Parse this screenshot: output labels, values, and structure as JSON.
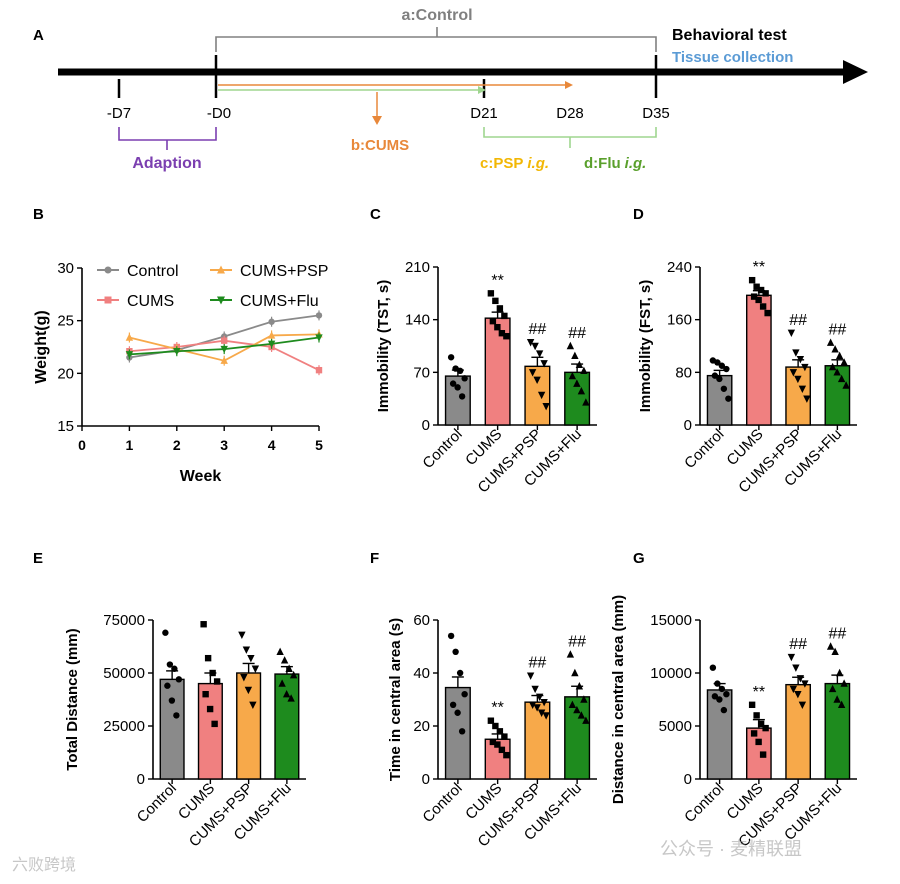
{
  "colors": {
    "control": "#8a8a8a",
    "cums": "#f08080",
    "psp": "#f7a94a",
    "flu": "#1e8b1e",
    "purple": "#7b3fb0",
    "orange": "#e8883a",
    "blue": "#5b9bd5",
    "yellow": "#f2b705",
    "green_text": "#5aa02c",
    "light_green": "#9fd68f",
    "gray_text": "#808080"
  },
  "panel_a": {
    "label": "A",
    "control_label": "a:Control",
    "behavioral_test": "Behavioral test",
    "tissue_collection": "Tissue collection",
    "ticks": [
      "-D7",
      "-D0",
      "D21",
      "D28",
      "D35"
    ],
    "adaption": "Adaption",
    "cums": "b:CUMS",
    "psp_prefix": "c:PSP",
    "psp_ig": "i.g.",
    "flu_prefix": "d:Flu",
    "flu_ig": "i.g."
  },
  "chart_data": [
    {
      "panel": "B",
      "type": "line",
      "xlabel": "Week",
      "ylabel": "Weight(g)",
      "x": [
        1,
        2,
        3,
        4,
        5
      ],
      "xlim": [
        0,
        5
      ],
      "ylim": [
        15,
        30
      ],
      "xticks": [
        "0",
        "1",
        "2",
        "3",
        "4",
        "5"
      ],
      "yticks": [
        "15",
        "20",
        "25",
        "30"
      ],
      "legend_position": "top",
      "series": [
        {
          "name": "Control",
          "values": [
            21.5,
            22.2,
            23.5,
            24.9,
            25.5
          ],
          "marker": "circle",
          "color": "#8a8a8a"
        },
        {
          "name": "CUMS",
          "values": [
            22.1,
            22.5,
            23.1,
            22.5,
            20.3
          ],
          "marker": "square",
          "color": "#f08080"
        },
        {
          "name": "CUMS+PSP",
          "values": [
            23.4,
            22.3,
            21.2,
            23.6,
            23.7
          ],
          "marker": "triangle-up",
          "color": "#f7a94a"
        },
        {
          "name": "CUMS+Flu",
          "values": [
            21.8,
            22.1,
            22.3,
            22.8,
            23.4
          ],
          "marker": "triangle-down",
          "color": "#1e8b1e"
        }
      ]
    },
    {
      "panel": "C",
      "type": "bar",
      "ylabel": "Immobility (TST, s)",
      "categories": [
        "Control",
        "CUMS",
        "CUMS+PSP",
        "CUMS+Flu"
      ],
      "values": [
        65,
        142,
        78,
        70
      ],
      "errors": [
        8,
        8,
        12,
        11
      ],
      "ylim": [
        0,
        210
      ],
      "yticks": [
        "0",
        "70",
        "140",
        "210"
      ],
      "annotations": [
        "",
        "**",
        "##",
        "##"
      ],
      "points": [
        [
          90,
          75,
          72,
          62,
          55,
          50,
          38
        ],
        [
          175,
          165,
          155,
          145,
          138,
          130,
          122,
          118
        ],
        [
          110,
          105,
          95,
          82,
          70,
          60,
          40,
          25
        ],
        [
          105,
          92,
          80,
          72,
          65,
          55,
          45,
          30
        ]
      ]
    },
    {
      "panel": "D",
      "type": "bar",
      "ylabel": "Immobility (FST, s)",
      "categories": [
        "Control",
        "CUMS",
        "CUMS+PSP",
        "CUMS+Flu"
      ],
      "values": [
        75,
        197,
        88,
        90
      ],
      "errors": [
        8,
        7,
        11,
        9
      ],
      "ylim": [
        0,
        240
      ],
      "yticks": [
        "0",
        "80",
        "160",
        "240"
      ],
      "annotations": [
        "",
        "**",
        "##",
        "##"
      ],
      "points": [
        [
          98,
          95,
          90,
          85,
          75,
          70,
          55,
          40
        ],
        [
          220,
          210,
          205,
          200,
          195,
          190,
          180,
          170
        ],
        [
          140,
          110,
          100,
          88,
          80,
          70,
          55,
          40
        ],
        [
          125,
          115,
          105,
          95,
          88,
          80,
          70,
          60
        ]
      ]
    },
    {
      "panel": "E",
      "type": "bar",
      "ylabel": "Total Distance (mm)",
      "categories": [
        "Control",
        "CUMS",
        "CUMS+PSP",
        "CUMS+Flu"
      ],
      "values": [
        47000,
        45000,
        50000,
        49500
      ],
      "errors": [
        4000,
        5000,
        4500,
        3500
      ],
      "ylim": [
        0,
        75000
      ],
      "yticks": [
        "0",
        "25000",
        "50000",
        "75000"
      ],
      "annotations": [
        "",
        "",
        "",
        ""
      ],
      "points": [
        [
          69000,
          54000,
          52000,
          47000,
          44000,
          37000,
          30000
        ],
        [
          73000,
          57000,
          50000,
          46000,
          40000,
          33000,
          26000
        ],
        [
          68000,
          61000,
          57000,
          52000,
          48000,
          42000,
          35000
        ],
        [
          60000,
          56000,
          52000,
          49000,
          45000,
          40000,
          38000
        ]
      ]
    },
    {
      "panel": "F",
      "type": "bar",
      "ylabel": "Time in central area (s)",
      "categories": [
        "Control",
        "CUMS",
        "CUMS+PSP",
        "CUMS+Flu"
      ],
      "values": [
        34.5,
        15,
        29,
        31
      ],
      "errors": [
        4,
        2,
        2.5,
        4
      ],
      "ylim": [
        0,
        60
      ],
      "yticks": [
        "0",
        "20",
        "40",
        "60"
      ],
      "annotations": [
        "",
        "**",
        "##",
        "##"
      ],
      "points": [
        [
          54,
          48,
          40,
          32,
          28,
          25,
          18
        ],
        [
          22,
          20,
          18,
          16,
          14,
          13,
          11,
          9
        ],
        [
          39,
          34,
          31,
          29,
          28,
          27,
          25,
          24
        ],
        [
          47,
          40,
          35,
          30,
          28,
          26,
          24,
          22
        ]
      ]
    },
    {
      "panel": "G",
      "type": "bar",
      "ylabel": "Distance in central area (mm)",
      "categories": [
        "Control",
        "CUMS",
        "CUMS+PSP",
        "CUMS+Flu"
      ],
      "values": [
        8400,
        4800,
        8900,
        9000
      ],
      "errors": [
        600,
        800,
        700,
        800
      ],
      "ylim": [
        0,
        15000
      ],
      "yticks": [
        "0",
        "5000",
        "10000",
        "15000"
      ],
      "annotations": [
        "",
        "**",
        "##",
        "##"
      ],
      "points": [
        [
          10500,
          9000,
          8500,
          8000,
          7800,
          7500,
          6500
        ],
        [
          7000,
          6000,
          5200,
          4800,
          4300,
          3500,
          2300
        ],
        [
          11500,
          10500,
          9500,
          9000,
          8500,
          8000,
          7000
        ],
        [
          12500,
          12000,
          10000,
          9000,
          8500,
          7500,
          7000
        ]
      ]
    }
  ],
  "watermark": {
    "left": "六败跨境",
    "right": "公众号 · 麦精联盟"
  }
}
